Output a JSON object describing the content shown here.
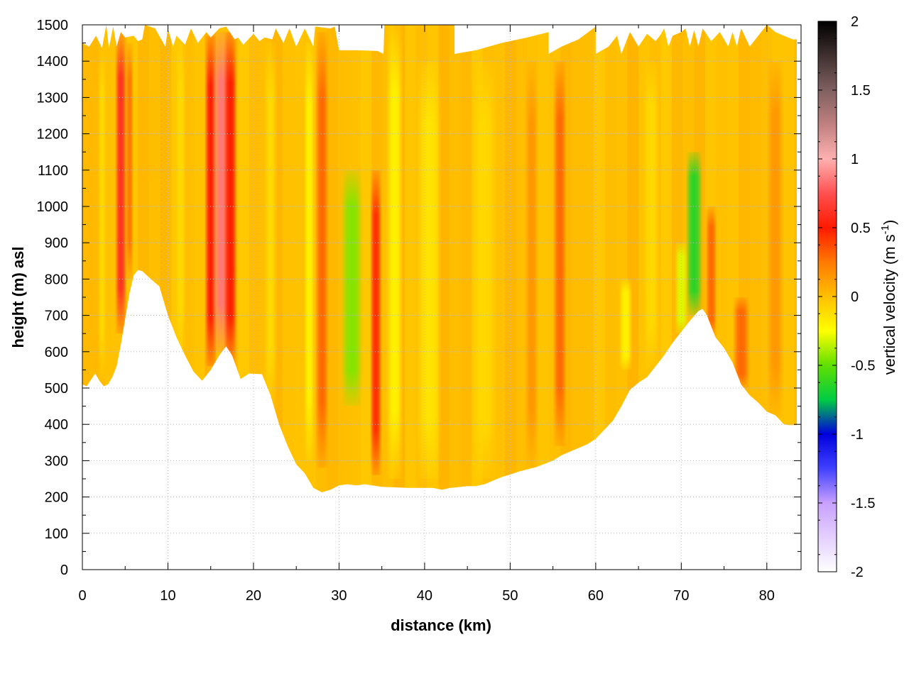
{
  "chart_data": {
    "type": "heatmap",
    "title": "",
    "xlabel": "distance (km)",
    "ylabel": "height (m) asl",
    "colorbar_label": "vertical velocity (m s",
    "colorbar_label_superscript": "-1",
    "colorbar_label_close": ")",
    "xlim": [
      0,
      84
    ],
    "ylim": [
      0,
      1500
    ],
    "grid": true,
    "x_ticks": [
      "0",
      "10",
      "20",
      "30",
      "40",
      "50",
      "60",
      "70",
      "80"
    ],
    "y_ticks": [
      "0",
      "100",
      "200",
      "300",
      "400",
      "500",
      "600",
      "700",
      "800",
      "900",
      "1000",
      "1100",
      "1200",
      "1300",
      "1400",
      "1500"
    ],
    "colorbar_ticks": [
      "-2",
      "-1.5",
      "-1",
      "-0.5",
      "0",
      "0.5",
      "1",
      "1.5",
      "2"
    ],
    "colorbar_range": [
      -2,
      2
    ],
    "colorbar_stops": [
      {
        "v": -2.0,
        "color": "#ffffff"
      },
      {
        "v": -1.5,
        "color": "#c8a0ff"
      },
      {
        "v": -1.25,
        "color": "#4040ff"
      },
      {
        "v": -1.0,
        "color": "#0000dd"
      },
      {
        "v": -0.75,
        "color": "#00cc44"
      },
      {
        "v": -0.5,
        "color": "#60e000"
      },
      {
        "v": -0.25,
        "color": "#ffff00"
      },
      {
        "v": 0.0,
        "color": "#ffbf00"
      },
      {
        "v": 0.25,
        "color": "#ff7a00"
      },
      {
        "v": 0.5,
        "color": "#ff1a00"
      },
      {
        "v": 0.75,
        "color": "#ff5050"
      },
      {
        "v": 1.0,
        "color": "#ffb0b0"
      },
      {
        "v": 1.25,
        "color": "#c08080"
      },
      {
        "v": 1.5,
        "color": "#806060"
      },
      {
        "v": 2.0,
        "color": "#000000"
      }
    ],
    "terrain": [
      [
        0,
        510
      ],
      [
        0.5,
        505
      ],
      [
        1.5,
        540
      ],
      [
        2,
        520
      ],
      [
        2.5,
        505
      ],
      [
        3,
        510
      ],
      [
        3.5,
        530
      ],
      [
        4,
        560
      ],
      [
        4.5,
        620
      ],
      [
        5,
        690
      ],
      [
        5.5,
        760
      ],
      [
        6,
        810
      ],
      [
        6.5,
        825
      ],
      [
        7,
        822
      ],
      [
        8,
        800
      ],
      [
        9,
        780
      ],
      [
        10,
        700
      ],
      [
        11,
        640
      ],
      [
        12,
        590
      ],
      [
        13,
        545
      ],
      [
        14,
        520
      ],
      [
        15,
        550
      ],
      [
        16,
        590
      ],
      [
        16.8,
        615
      ],
      [
        17.5,
        590
      ],
      [
        18.5,
        525
      ],
      [
        19.5,
        540
      ],
      [
        21,
        538
      ],
      [
        22,
        480
      ],
      [
        23,
        400
      ],
      [
        24,
        340
      ],
      [
        25,
        290
      ],
      [
        26,
        265
      ],
      [
        27,
        225
      ],
      [
        28,
        213
      ],
      [
        29,
        220
      ],
      [
        30,
        232
      ],
      [
        31,
        235
      ],
      [
        32,
        232
      ],
      [
        33,
        235
      ],
      [
        35,
        228
      ],
      [
        38,
        225
      ],
      [
        41,
        225
      ],
      [
        42,
        220
      ],
      [
        43,
        225
      ],
      [
        45,
        230
      ],
      [
        46,
        230
      ],
      [
        47,
        235
      ],
      [
        48,
        245
      ],
      [
        49,
        255
      ],
      [
        50,
        262
      ],
      [
        51,
        270
      ],
      [
        53,
        282
      ],
      [
        55,
        300
      ],
      [
        56,
        315
      ],
      [
        57,
        325
      ],
      [
        59,
        345
      ],
      [
        60,
        360
      ],
      [
        61,
        385
      ],
      [
        62,
        410
      ],
      [
        63,
        450
      ],
      [
        64,
        495
      ],
      [
        65,
        515
      ],
      [
        66,
        530
      ],
      [
        67,
        560
      ],
      [
        68,
        590
      ],
      [
        69,
        625
      ],
      [
        70,
        655
      ],
      [
        71,
        685
      ],
      [
        72,
        712
      ],
      [
        72.5,
        718
      ],
      [
        73,
        700
      ],
      [
        74,
        640
      ],
      [
        75,
        610
      ],
      [
        76,
        570
      ],
      [
        77,
        510
      ],
      [
        78,
        480
      ],
      [
        79,
        460
      ],
      [
        80,
        435
      ],
      [
        81,
        425
      ],
      [
        82,
        400
      ],
      [
        82.5,
        398
      ],
      [
        83.5,
        398
      ]
    ],
    "top_edge": [
      [
        0,
        1450
      ],
      [
        0.8,
        1440
      ],
      [
        1.6,
        1470
      ],
      [
        2.3,
        1435
      ],
      [
        2.8,
        1500
      ],
      [
        3.1,
        1435
      ],
      [
        3.6,
        1495
      ],
      [
        4,
        1440
      ],
      [
        4.5,
        1480
      ],
      [
        5,
        1465
      ],
      [
        6,
        1470
      ],
      [
        6.5,
        1455
      ],
      [
        7,
        1460
      ],
      [
        7.3,
        1500
      ],
      [
        8.5,
        1490
      ],
      [
        9.7,
        1440
      ],
      [
        10,
        1490
      ],
      [
        10.6,
        1440
      ],
      [
        11,
        1470
      ],
      [
        12,
        1445
      ],
      [
        12.7,
        1490
      ],
      [
        13.5,
        1450
      ],
      [
        14.5,
        1480
      ],
      [
        15,
        1465
      ],
      [
        16,
        1490
      ],
      [
        16.8,
        1495
      ],
      [
        17.8,
        1460
      ],
      [
        18.2,
        1465
      ],
      [
        18.8,
        1445
      ],
      [
        20,
        1475
      ],
      [
        20.7,
        1455
      ],
      [
        21.3,
        1465
      ],
      [
        22.2,
        1460
      ],
      [
        22.6,
        1490
      ],
      [
        23.5,
        1450
      ],
      [
        24.2,
        1490
      ],
      [
        25,
        1440
      ],
      [
        26,
        1490
      ],
      [
        27,
        1440
      ],
      [
        27.2,
        1495
      ],
      [
        29,
        1490
      ],
      [
        29.5,
        1495
      ],
      [
        30,
        1430
      ],
      [
        32,
        1430
      ],
      [
        34.5,
        1428
      ],
      [
        35.2,
        1420
      ],
      [
        35.3,
        1500
      ],
      [
        43.5,
        1500
      ],
      [
        43.5,
        1420
      ],
      [
        46,
        1430
      ],
      [
        49,
        1450
      ],
      [
        52,
        1465
      ],
      [
        54.5,
        1480
      ],
      [
        54.5,
        1420
      ],
      [
        56,
        1440
      ],
      [
        58,
        1460
      ],
      [
        60,
        1495
      ],
      [
        60,
        1420
      ],
      [
        61.5,
        1440
      ],
      [
        62.5,
        1470
      ],
      [
        63,
        1420
      ],
      [
        64,
        1480
      ],
      [
        65,
        1440
      ],
      [
        66,
        1475
      ],
      [
        67,
        1455
      ],
      [
        67.5,
        1470
      ],
      [
        68,
        1490
      ],
      [
        68.5,
        1440
      ],
      [
        69,
        1470
      ],
      [
        70,
        1480
      ],
      [
        70.5,
        1490
      ],
      [
        71,
        1440
      ],
      [
        71.5,
        1485
      ],
      [
        72,
        1440
      ],
      [
        72.5,
        1490
      ],
      [
        73.5,
        1455
      ],
      [
        74.5,
        1480
      ],
      [
        75.5,
        1440
      ],
      [
        76,
        1480
      ],
      [
        76.5,
        1440
      ],
      [
        77,
        1490
      ],
      [
        78,
        1440
      ],
      [
        80,
        1500
      ],
      [
        81,
        1480
      ],
      [
        82,
        1470
      ],
      [
        83,
        1460
      ],
      [
        83.5,
        1460
      ]
    ],
    "bands": [
      {
        "x": 4.5,
        "y0": 650,
        "y1": 1480,
        "v": 0.6,
        "w": 0.7
      },
      {
        "x": 5.5,
        "y0": 800,
        "y1": 1450,
        "v": 0.25,
        "w": 0.5
      },
      {
        "x": 15.0,
        "y0": 560,
        "y1": 1470,
        "v": 0.5,
        "w": 0.7
      },
      {
        "x": 16.3,
        "y0": 600,
        "y1": 1480,
        "v": 0.85,
        "w": 1.2
      },
      {
        "x": 17.3,
        "y0": 560,
        "y1": 1480,
        "v": 0.5,
        "w": 0.8
      },
      {
        "x": 28.0,
        "y0": 280,
        "y1": 1480,
        "v": 0.3,
        "w": 0.8
      },
      {
        "x": 31.5,
        "y0": 450,
        "y1": 1100,
        "v": -0.45,
        "w": 1.3
      },
      {
        "x": 34.3,
        "y0": 260,
        "y1": 1100,
        "v": 0.45,
        "w": 0.7
      },
      {
        "x": 36.5,
        "y0": 250,
        "y1": 1500,
        "v": -0.2,
        "w": 1.0
      },
      {
        "x": 55.8,
        "y0": 340,
        "y1": 1400,
        "v": 0.3,
        "w": 0.8
      },
      {
        "x": 63.5,
        "y0": 550,
        "y1": 800,
        "v": -0.2,
        "w": 0.8
      },
      {
        "x": 71.5,
        "y0": 700,
        "y1": 1150,
        "v": -0.65,
        "w": 1.0
      },
      {
        "x": 70.0,
        "y0": 650,
        "y1": 900,
        "v": -0.3,
        "w": 0.8
      },
      {
        "x": 73.5,
        "y0": 630,
        "y1": 1000,
        "v": 0.3,
        "w": 0.7
      },
      {
        "x": 77.0,
        "y0": 500,
        "y1": 750,
        "v": 0.3,
        "w": 1.0
      },
      {
        "x": 2.3,
        "y0": 520,
        "y1": 1450,
        "v": -0.1,
        "w": 0.5
      },
      {
        "x": 11.5,
        "y0": 600,
        "y1": 1450,
        "v": -0.1,
        "w": 0.6
      },
      {
        "x": 22.0,
        "y0": 450,
        "y1": 1450,
        "v": -0.1,
        "w": 0.8
      },
      {
        "x": 26.5,
        "y0": 300,
        "y1": 1450,
        "v": -0.2,
        "w": 0.6
      },
      {
        "x": 40.5,
        "y0": 250,
        "y1": 1400,
        "v": -0.15,
        "w": 1.5
      },
      {
        "x": 47.0,
        "y0": 250,
        "y1": 1400,
        "v": -0.1,
        "w": 1.5
      },
      {
        "x": 52.5,
        "y0": 280,
        "y1": 1400,
        "v": 0.15,
        "w": 0.8
      },
      {
        "x": 66.5,
        "y0": 550,
        "y1": 1400,
        "v": -0.1,
        "w": 1.0
      },
      {
        "x": 81.0,
        "y0": 420,
        "y1": 1400,
        "v": 0.15,
        "w": 1.0
      }
    ],
    "background_value": 0.0
  }
}
